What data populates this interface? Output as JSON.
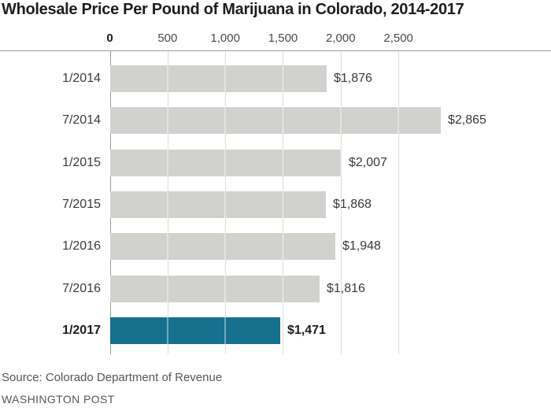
{
  "title": "Wholesale Price Per Pound of Marijuana in Colorado, 2014-2017",
  "footer": {
    "source": "Source: Colorado Department of Revenue",
    "credit": "WASHINGTON POST"
  },
  "colors": {
    "bar_default": "#d1d1cd",
    "bar_highlight": "#16708e",
    "axis_line": "#9c9c9c",
    "zero_line": "#999999",
    "gridline": "#dddddb",
    "title_text": "#1d1d1d",
    "label_text": "#3a3a3a",
    "tick_text": "#4a4a4a",
    "muted_text": "#565656"
  },
  "chart_data": {
    "type": "bar",
    "orientation": "horizontal",
    "title": "Wholesale Price Per Pound of Marijuana in Colorado, 2014-2017",
    "categories": [
      "1/2014",
      "7/2014",
      "1/2015",
      "7/2015",
      "1/2016",
      "7/2016",
      "1/2017"
    ],
    "values": [
      1876,
      2865,
      2007,
      1868,
      1948,
      1816,
      1471
    ],
    "value_labels": [
      "$1,876",
      "$2,865",
      "$2,007",
      "$1,868",
      "$1,948",
      "$1,816",
      "$1,471"
    ],
    "highlight_index": 6,
    "x_ticks": [
      {
        "value": 0,
        "label": "0"
      },
      {
        "value": 500,
        "label": "500"
      },
      {
        "value": 1000,
        "label": "1,000"
      },
      {
        "value": 1500,
        "label": "1,500"
      },
      {
        "value": 2000,
        "label": "2,000"
      },
      {
        "value": 2500,
        "label": "2,500"
      }
    ],
    "xlim": [
      0,
      2865
    ],
    "grid": true,
    "legend": false,
    "source": "Source: Colorado Department of Revenue",
    "credit": "WASHINGTON POST"
  }
}
